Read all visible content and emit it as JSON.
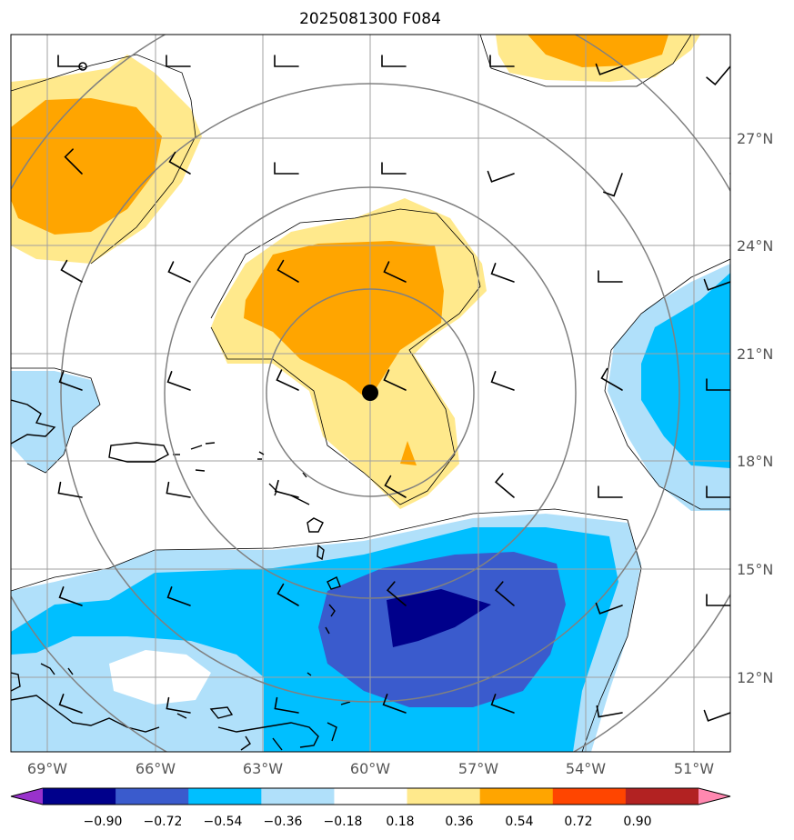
{
  "title": "2025081300 F084",
  "map": {
    "lon_range": [
      -70,
      -50
    ],
    "lat_range": [
      10.3,
      29.7
    ],
    "lon_ticks": [
      "69°W",
      "66°W",
      "63°W",
      "60°W",
      "57°W",
      "54°W",
      "51°W"
    ],
    "lat_ticks": [
      "27°N",
      "24°N",
      "21°N",
      "18°N",
      "15°N",
      "12°N"
    ],
    "gridlines": true,
    "center_marker": {
      "lon": -60.0,
      "lat": 19.8
    },
    "range_rings_deg": [
      3,
      6,
      9,
      12
    ],
    "ring_color": "#808080"
  },
  "colorbar": {
    "levels": [
      "−0.90",
      "−0.72",
      "−0.54",
      "−0.36",
      "−0.18",
      "0.18",
      "0.36",
      "0.54",
      "0.72",
      "0.90"
    ],
    "colors": [
      "#9932cc",
      "#00008b",
      "#3a5bcd",
      "#00bfff",
      "#b0e0fa",
      "#ffffff",
      "#ffe98c",
      "#ffa500",
      "#ff4500",
      "#b22222",
      "#ff88b0"
    ],
    "extend": "both"
  },
  "shading_colors": {
    "neg_strong": "#00008b",
    "neg_mid": "#3a5bcd",
    "neg_weak": "#00bfff",
    "neg_faint": "#b0e0fa",
    "pos_faint": "#ffe98c",
    "pos_weak": "#ffa500"
  }
}
